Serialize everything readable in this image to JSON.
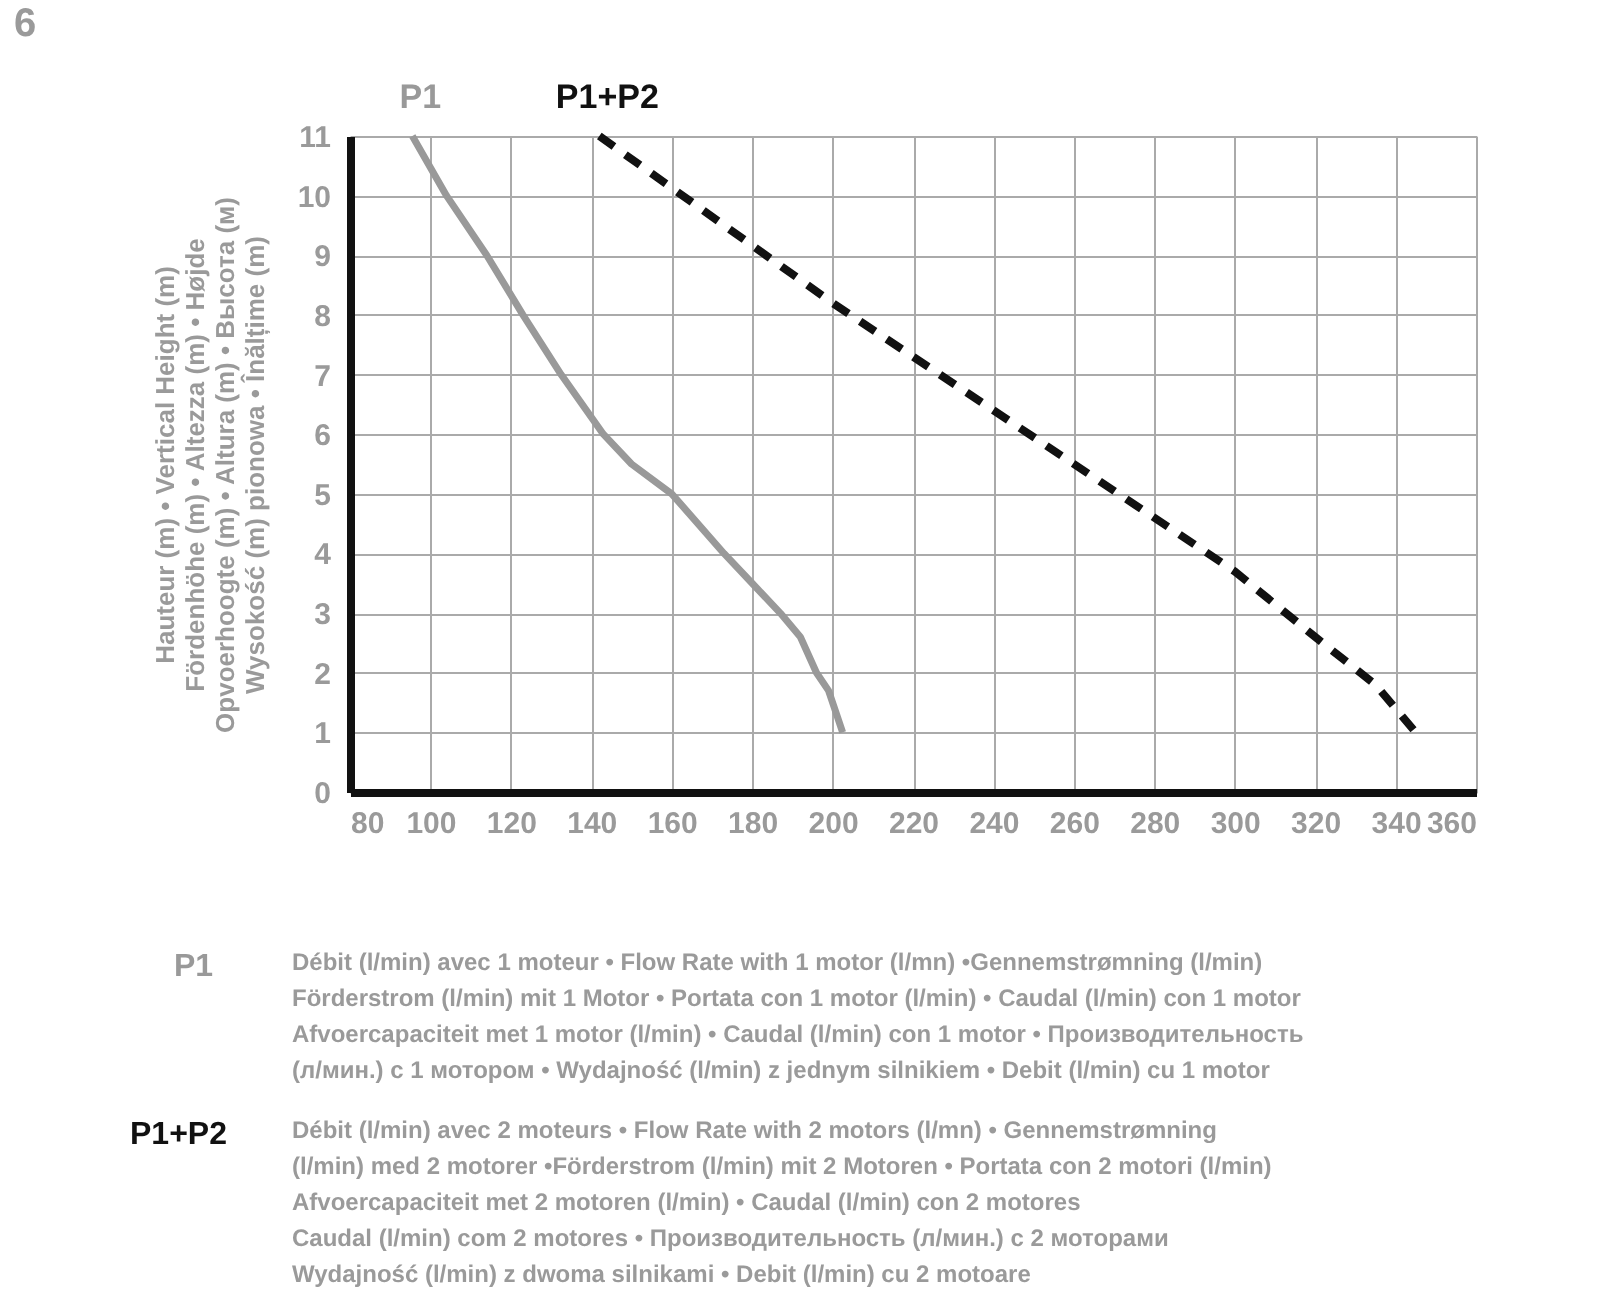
{
  "chart_data": {
    "type": "line",
    "ylabel": "Hauteur (m) • Vertical Height (m)\nFördenhöhe (m) • Altezza (m) • Højde\nOpvoerhoogte (m) • Altura (m) • Высота (м)\nWysokość (m) pionowa • Înălțime (m)",
    "xlim": [
      80,
      360
    ],
    "xticks": [
      80,
      100,
      120,
      140,
      160,
      180,
      200,
      220,
      240,
      260,
      280,
      300,
      320,
      340,
      360
    ],
    "ylim": [
      0,
      11
    ],
    "yticks": [
      0,
      1,
      2,
      3,
      4,
      5,
      6,
      7,
      8,
      9,
      10,
      11
    ],
    "grid": true,
    "marker": "none",
    "legend": "top",
    "series": [
      {
        "name": "P1",
        "color": "#999999",
        "line_style": "solid",
        "x": [
          95.5,
          104,
          114,
          123,
          132.5,
          143,
          150,
          160,
          173,
          180,
          187,
          192,
          196,
          199,
          201,
          202.5
        ],
        "values": [
          11,
          10,
          9,
          8,
          7,
          6,
          5.5,
          5,
          4,
          3.5,
          3,
          2.6,
          2,
          1.7,
          1.3,
          1
        ]
      },
      {
        "name": "P1+P2",
        "color": "#111111",
        "line_style": "dashed",
        "x": [
          142,
          200,
          260,
          300,
          320,
          335,
          345
        ],
        "values": [
          11,
          8.2,
          5.5,
          3.7,
          2.6,
          1.8,
          1
        ]
      }
    ],
    "annotations": [
      "6",
      "Débit (l/min) avec 1 moteur • Flow Rate with 1 motor (l/mn) •Gennemstrømning (l/min)\nFörderstrom (l/min) mit 1 Motor • Portata con 1 motor (l/min) • Caudal (l/min) con 1 motor\nAfvoercapaciteit met 1 motor (l/min) • Caudal (l/min) con 1 motor • Производительность\n(л/мин.) с 1 мотором • Wydajność (l/min) z jednym silnikiem • Debit (l/min) cu 1 motor",
      "Débit (l/min) avec 2 moteurs • Flow Rate with 2 motors (l/mn) • Gennemstrømning\n(l/min) med 2 motorer •Förderstrom (l/min) mit 2 Motoren • Portata con 2 motori (l/min)\nAfvoercapaciteit met 2 motoren (l/min) • Caudal (l/min) con 2 motores\nCaudal (l/min) com 2 motores • Производительность (л/мин.) с 2 моторами\nWydajność (l/min) z dwoma silnikami • Debit (l/min) cu 2 motoare"
    ]
  }
}
